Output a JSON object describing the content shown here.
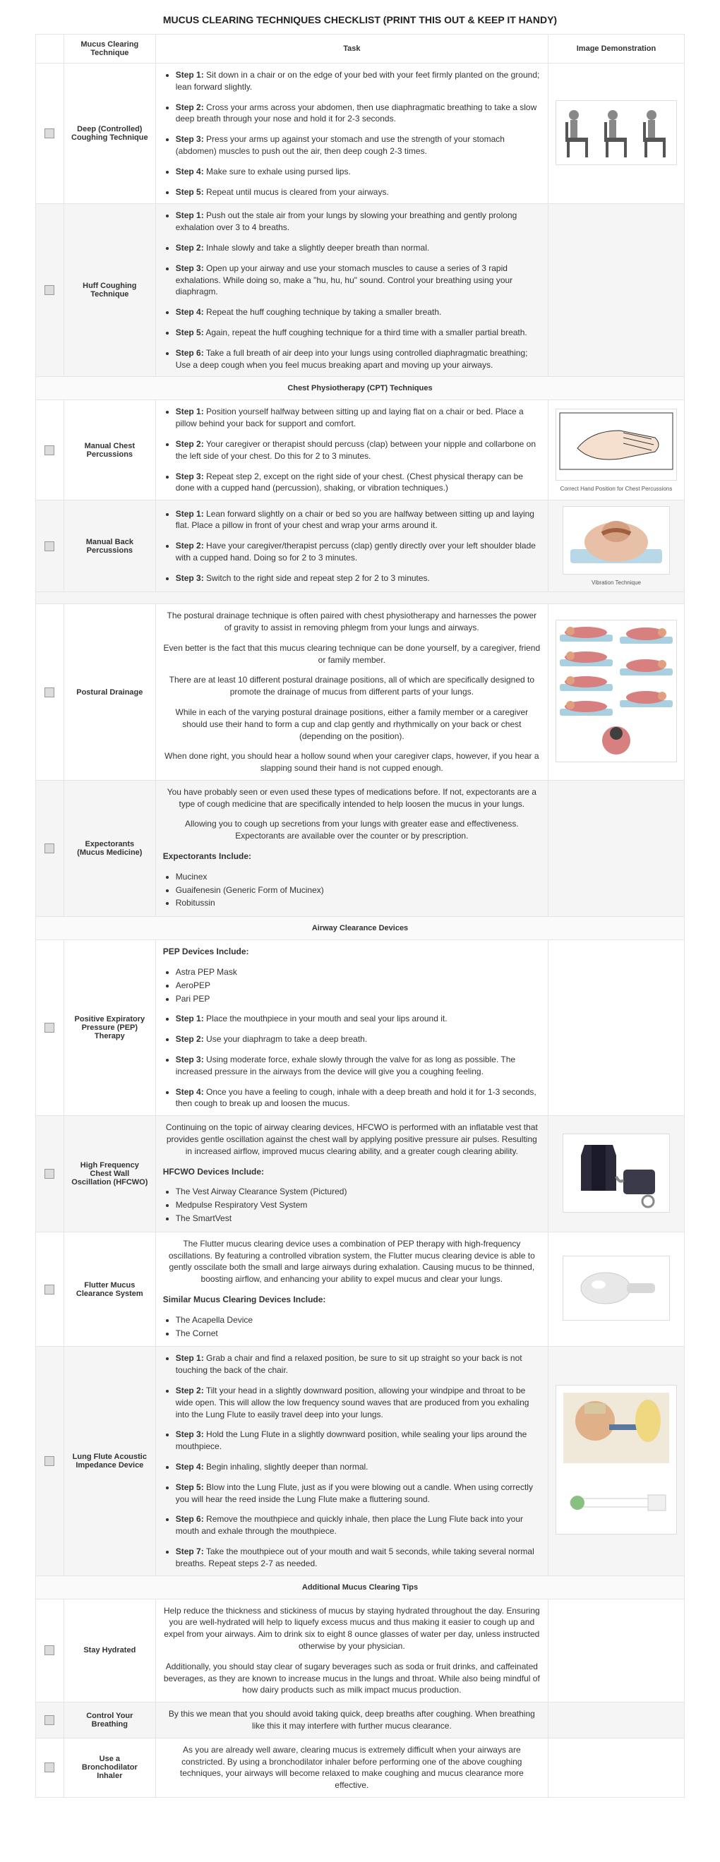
{
  "title": "MUCUS CLEARING TECHNIQUES CHECKLIST (PRINT THIS OUT & KEEP IT HANDY)",
  "headers": {
    "technique": "Mucus Clearing Technique",
    "task": "Task",
    "image": "Image Demonstration"
  },
  "rows": [
    {
      "technique": "Deep (Controlled) Coughing Technique",
      "even": false,
      "hasImage": true,
      "steps": [
        {
          "b": "Step 1:",
          "t": " Sit down in a chair or on the edge of your bed with your feet firmly planted on the ground; lean forward slightly."
        },
        {
          "b": "Step 2:",
          "t": " Cross your arms across your abdomen, then use diaphragmatic breathing to take a slow deep breath through your nose and hold it for 2-3 seconds."
        },
        {
          "b": "Step 3:",
          "t": " Press your arms up against your stomach and use the strength of your stomach (abdomen) muscles to push out the air, then deep cough 2-3 times."
        },
        {
          "b": "Step 4:",
          "t": " Make sure to exhale using pursed lips."
        },
        {
          "b": "Step 5:",
          "t": " Repeat until mucus is cleared from your airways."
        }
      ],
      "imgSvg": "chairs"
    },
    {
      "technique": "Huff Coughing Technique",
      "even": true,
      "steps": [
        {
          "b": "Step 1:",
          "t": " Push out the stale air from your lungs by slowing your breathing and gently prolong exhalation over 3 to 4 breaths."
        },
        {
          "b": "Step 2:",
          "t": " Inhale slowly and take a slightly deeper breath than normal."
        },
        {
          "b": "Step 3:",
          "t": " Open up your airway and use your stomach muscles to cause a series of 3 rapid exhalations. While doing so, make a \"hu, hu, hu\" sound. Control your breathing using your diaphragm."
        },
        {
          "b": "Step 4:",
          "t": " Repeat the huff coughing technique by taking a smaller breath."
        },
        {
          "b": "Step 5:",
          "t": " Again, repeat the huff coughing technique for a third time with a smaller partial breath."
        },
        {
          "b": "Step 6:",
          "t": " Take a full breath of air deep into your lungs using controlled diaphragmatic breathing; Use a deep cough when you feel mucus breaking apart and moving up your airways."
        }
      ]
    },
    {
      "section": "Chest Physiotherapy (CPT) Techniques"
    },
    {
      "technique": "Manual Chest Percussions",
      "even": false,
      "hasImage": true,
      "imgSvg": "hand",
      "caption": "Correct Hand Position for Chest Percussions",
      "steps": [
        {
          "b": "Step 1:",
          "t": " Position yourself halfway between sitting up and laying flat on a chair or bed. Place a pillow behind your back for support and comfort."
        },
        {
          "b": "Step 2:",
          "t": " Your caregiver or therapist should percuss (clap) between your nipple and collarbone on the left side of your chest. Do this for 2 to 3 minutes."
        },
        {
          "b": "Step 3:",
          "t": " Repeat step 2, except on the right side of your chest. (Chest physical therapy can be done with a cupped hand (percussion), shaking, or vibration techniques.)"
        }
      ]
    },
    {
      "technique": "Manual Back Percussions",
      "even": true,
      "hasImage": true,
      "imgSvg": "back",
      "caption": "Vibration Technique",
      "steps": [
        {
          "b": "Step 1:",
          "t": " Lean forward slightly on a chair or bed so you are halfway between sitting up and laying flat. Place a pillow in front of your chest and wrap your arms around it."
        },
        {
          "b": "Step 2:",
          "t": " Have your caregiver/therapist percuss (clap) gently directly over your left shoulder blade with a cupped hand. Doing so for 2 to 3 minutes."
        },
        {
          "b": "Step 3:",
          "t": " Switch to the right side and repeat step 2 for 2 to 3 minutes."
        }
      ]
    },
    {
      "spacer": true
    },
    {
      "technique": "Postural Drainage",
      "even": false,
      "hasImage": true,
      "imgSvg": "postural",
      "paras": [
        "The postural drainage technique is often paired with chest physiotherapy and harnesses the power of gravity to assist in removing phlegm from your lungs and airways.",
        "Even better is the fact that this mucus clearing technique can be done yourself, by a caregiver, friend or family member.",
        "There are at least 10 different postural drainage positions, all of which are specifically designed to promote the drainage of mucus from different parts of your lungs.",
        "While in each of the varying postural drainage positions, either a family member or a caregiver should use their hand to form a cup and clap gently and rhythmically on your back or chest (depending on the position).",
        "When done right, you should hear a hollow sound when your caregiver claps, however, if you hear a slapping sound their hand is not cupped enough."
      ]
    },
    {
      "technique": "Expectorants (Mucus Medicine)",
      "even": true,
      "paras": [
        "You have probably seen or even used these types of medications before. If not, expectorants are a type of cough medicine that are specifically intended to help loosen the mucus in your lungs.",
        "Allowing you to cough up secretions from your lungs with greater ease and effectiveness. Expectorants are available over the counter or by prescription."
      ],
      "listHead": "Expectorants Include:",
      "list": [
        "Mucinex",
        "Guaifenesin (Generic Form of Mucinex)",
        "Robitussin"
      ]
    },
    {
      "section": "Airway Clearance Devices"
    },
    {
      "technique": "Positive Expiratory Pressure (PEP) Therapy",
      "even": false,
      "listHead": "PEP Devices Include:",
      "list": [
        "Astra PEP Mask",
        "AeroPEP",
        "Pari PEP"
      ],
      "steps": [
        {
          "b": "Step 1:",
          "t": " Place the mouthpiece in your mouth and seal your lips around it."
        },
        {
          "b": "Step 2:",
          "t": " Use your diaphragm to take a deep breath."
        },
        {
          "b": "Step 3:",
          "t": " Using moderate force, exhale slowly through the valve for as long as possible. The increased pressure in the airways from the device will give you a coughing feeling."
        },
        {
          "b": "Step 4:",
          "t": " Once you have a feeling to cough, inhale with a deep breath and hold it for 1-3 seconds, then cough to break up and loosen the mucus."
        }
      ]
    },
    {
      "technique": "High Frequency Chest Wall Oscillation (HFCWO)",
      "even": true,
      "hasImage": true,
      "imgSvg": "vest",
      "paras": [
        "Continuing on the topic of airway clearing devices, HFCWO is performed with an inflatable vest that provides gentle oscillation against the chest wall by applying positive pressure air pulses. Resulting in increased airflow, improved mucus clearing ability, and a greater cough clearing ability."
      ],
      "listHead": "HFCWO Devices Include:",
      "list": [
        "The Vest Airway Clearance System (Pictured)",
        "Medpulse Respiratory Vest System",
        "The SmartVest"
      ]
    },
    {
      "technique": "Flutter Mucus Clearance System",
      "even": false,
      "hasImage": true,
      "imgSvg": "flutter",
      "paras": [
        "The Flutter mucus clearing device uses a combination of PEP therapy with high-frequency oscillations. By featuring a controlled vibration system, the Flutter mucus clearing device is able to gently osscilate both the small and large airways during exhalation. Causing mucus to be thinned, boosting airflow, and enhancing your ability to expel mucus and clear your lungs."
      ],
      "listHead": "Similar Mucus Clearing Devices Include:",
      "list": [
        "The Acapella Device",
        "The Cornet"
      ]
    },
    {
      "technique": "Lung Flute Acoustic Impedance Device",
      "even": true,
      "hasImage": true,
      "imgSvg": "lungflute",
      "steps": [
        {
          "b": "Step 1:",
          "t": " Grab a chair and find a relaxed position, be sure to sit up straight so your back is not touching the back of the chair."
        },
        {
          "b": "Step 2:",
          "t": " Tilt your head in a slightly downward position, allowing your windpipe and throat to be wide open. This will allow the low frequency sound waves that are produced from you exhaling into the Lung Flute to easily travel deep into your lungs."
        },
        {
          "b": "Step 3:",
          "t": " Hold the Lung Flute in a slightly downward position, while sealing your lips around the mouthpiece."
        },
        {
          "b": "Step 4:",
          "t": " Begin inhaling, slightly deeper than normal."
        },
        {
          "b": "Step 5:",
          "t": " Blow into the Lung Flute, just as if you were blowing out a candle. When using correctly you will hear the reed inside the Lung Flute make a fluttering sound."
        },
        {
          "b": "Step 6:",
          "t": " Remove the mouthpiece and quickly inhale, then place the Lung Flute back into your mouth and exhale through the mouthpiece."
        },
        {
          "b": "Step 7:",
          "t": " Take the mouthpiece out of your mouth and wait 5 seconds, while taking several normal breaths. Repeat steps 2-7 as needed."
        }
      ]
    },
    {
      "section": "Additional Mucus Clearing Tips"
    },
    {
      "technique": "Stay Hydrated",
      "even": false,
      "paras": [
        "Help reduce the thickness and stickiness of mucus by staying hydrated throughout the day. Ensuring you are well-hydrated will help to liquefy excess mucus and thus making it easier to cough up and expel from your airways. Aim to drink six to eight 8 ounce glasses of water per day, unless instructed otherwise by your physician.",
        "Additionally, you should stay clear of sugary beverages such as soda or fruit drinks, and caffeinated beverages, as they are known to increase mucus in the lungs and throat. While also being mindful of how dairy products such as milk impact mucus production."
      ]
    },
    {
      "technique": "Control Your Breathing",
      "even": true,
      "paras": [
        "By this we mean that you should avoid taking quick, deep breaths after coughing. When breathing like this it may interfere with further mucus clearance."
      ]
    },
    {
      "technique": "Use a Bronchodilator Inhaler",
      "even": false,
      "paras": [
        "As you are already well aware, clearing mucus is extremely difficult when your airways are constricted. By using a bronchodilator inhaler before performing one of the above coughing techniques, your airways will become relaxed to make coughing and mucus clearance more effective."
      ]
    }
  ]
}
